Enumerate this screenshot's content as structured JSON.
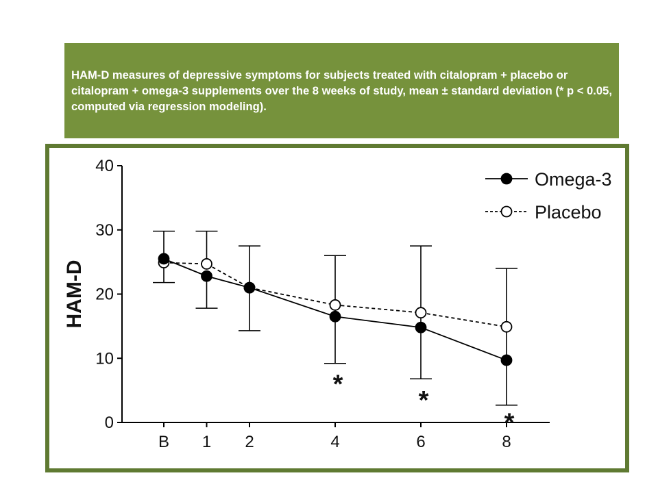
{
  "caption": "HAM-D measures of depressive symptoms for subjects treated with citalopram + placebo or citalopram + omega-3 supplements over the 8 weeks of study, mean ± standard deviation (* p < 0.05, computed via regression modeling).",
  "colors": {
    "caption_bg": "#76923c",
    "frame_border": "#5f7a32",
    "line": "#000000"
  },
  "chart_data": {
    "type": "line",
    "title": "",
    "xlabel": "",
    "ylabel": "HAM-D",
    "ylim": [
      0,
      40
    ],
    "yticks": [
      0,
      10,
      20,
      30,
      40
    ],
    "categories": [
      "B",
      "1",
      "2",
      "4",
      "6",
      "8"
    ],
    "x": [
      0,
      1,
      2,
      4,
      6,
      8
    ],
    "legend_position": "top-right",
    "series": [
      {
        "name": "Omega-3",
        "marker": "filled-circle",
        "line_style": "solid",
        "values": [
          25.5,
          22.8,
          21.0,
          16.5,
          14.8,
          9.7
        ],
        "error_upper": [
          29.8,
          null,
          27.5,
          26.0,
          27.5,
          24.0
        ],
        "error_lower": [
          21.8,
          17.8,
          14.3,
          9.2,
          6.8,
          2.7
        ]
      },
      {
        "name": "Placebo",
        "marker": "open-circle",
        "line_style": "dashed",
        "values": [
          24.9,
          24.7,
          21.0,
          18.3,
          17.1,
          14.9
        ],
        "error_upper": [
          null,
          29.8,
          null,
          null,
          null,
          null
        ],
        "error_lower": [
          null,
          null,
          null,
          null,
          null,
          null
        ]
      }
    ],
    "annotations": [
      {
        "text": "*",
        "x": 4,
        "y": 7
      },
      {
        "text": "*",
        "x": 6,
        "y": 4.5
      },
      {
        "text": "*",
        "x": 8,
        "y": 1
      }
    ]
  }
}
